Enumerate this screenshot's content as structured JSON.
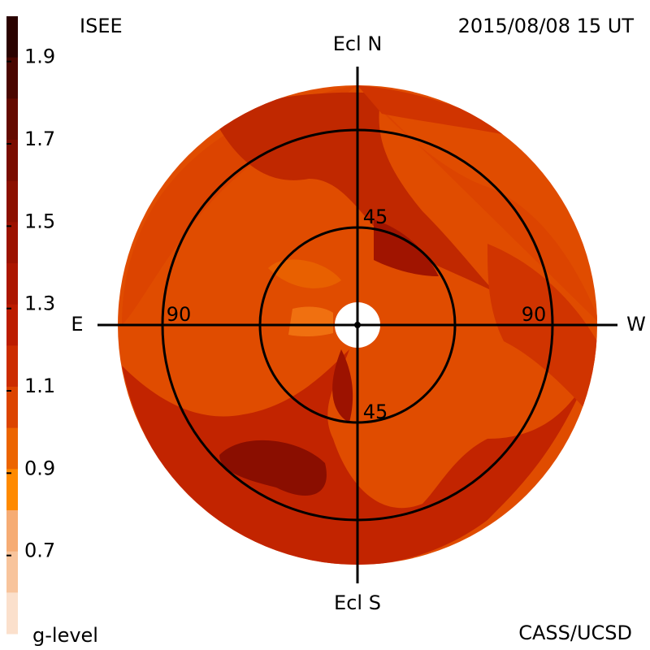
{
  "header": {
    "left": "ISEE",
    "right": "2015/08/08 15 UT"
  },
  "footer": {
    "left": "g-level",
    "right": "CASS/UCSD"
  },
  "colorbar": {
    "range": [
      0.5,
      2.0
    ],
    "ticks": [
      0.7,
      0.9,
      1.1,
      1.3,
      1.5,
      1.7,
      1.9
    ],
    "colors": [
      "#2a0200",
      "#4a0600",
      "#640a00",
      "#7a0c00",
      "#8c1000",
      "#9c1200",
      "#ac1600",
      "#bc1c00",
      "#cc2c00",
      "#dc4400",
      "#ec6400",
      "#ff8a00",
      "#f6ac74",
      "#f8c49c",
      "#fbe0cc"
    ]
  },
  "map": {
    "north": "Ecl N",
    "south": "Ecl S",
    "east": "E",
    "west": "W",
    "rings": [
      {
        "label_a": "45",
        "label_b": "45"
      },
      {
        "label_a": "90",
        "label_b": "90"
      }
    ]
  }
}
